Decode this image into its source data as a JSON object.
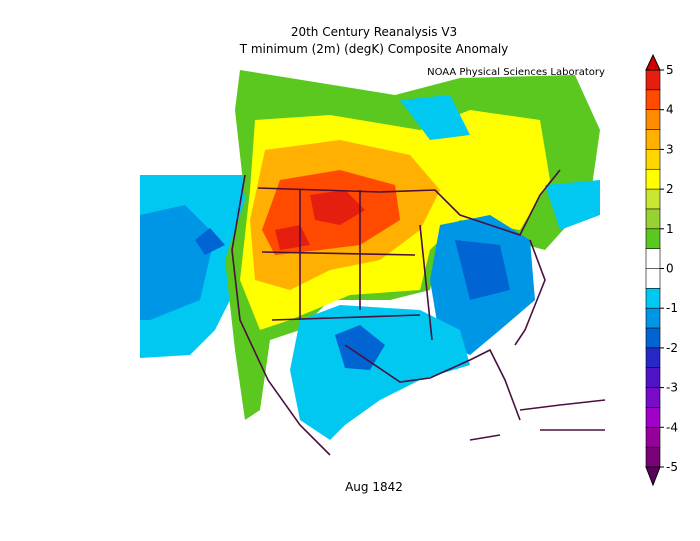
{
  "map": {
    "title": "20th Century Reanalysis V3",
    "subtitle": "T minimum (2m) (degK) Composite Anomaly",
    "credit": "NOAA Physical Sciences Laboratory",
    "date": "Aug 1842",
    "colorbar": {
      "ticks": [
        5,
        4,
        3,
        2,
        1,
        0,
        -1,
        -2,
        -3,
        -4,
        -5
      ],
      "over_color": "#d00000",
      "under_color": "#5a005a",
      "colors": [
        "#e61e10",
        "#ff4a00",
        "#ff8c00",
        "#ffb000",
        "#ffd700",
        "#ffff00",
        "#c8e632",
        "#96d232",
        "#5ac81e",
        "#ffffff",
        "#ffffff",
        "#00c8f0",
        "#0096e6",
        "#0064d2",
        "#2828c8",
        "#5014c8",
        "#780ac8",
        "#a000c8",
        "#96009a",
        "#780078"
      ]
    }
  }
}
